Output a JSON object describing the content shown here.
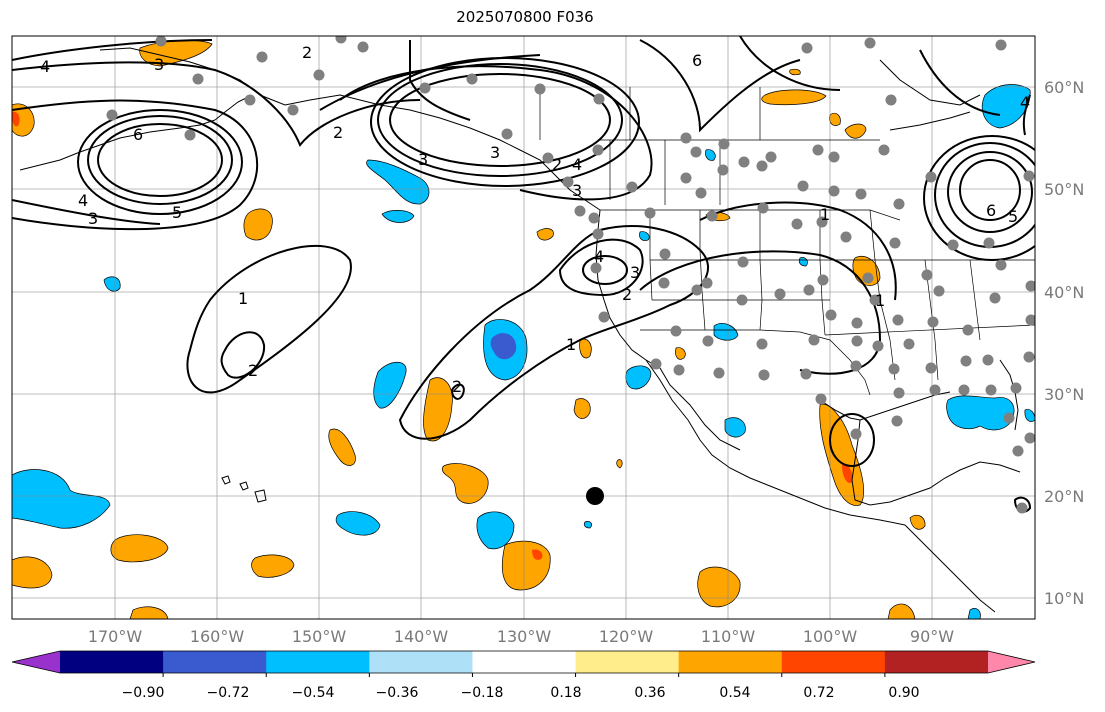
{
  "title": "2025070800 F036",
  "lat_labels": [
    "60°N",
    "50°N",
    "40°N",
    "30°N",
    "20°N",
    "10°N"
  ],
  "lon_labels": [
    "170°W",
    "160°W",
    "150°W",
    "140°W",
    "130°W",
    "120°W",
    "110°W",
    "100°W",
    "90°W"
  ],
  "colorbar": {
    "ticks": [
      "−0.90",
      "−0.72",
      "−0.54",
      "−0.36",
      "−0.18",
      "0.18",
      "0.36",
      "0.54",
      "0.72",
      "0.90"
    ],
    "colors": [
      "#9932cc",
      "#000080",
      "#3a5bcf",
      "#00bfff",
      "#aee0f8",
      "#ffffff",
      "#ffec8b",
      "#ffa500",
      "#ff4500",
      "#b22222",
      "#ff88aa"
    ]
  },
  "contour_labels": [
    "4",
    "3",
    "2",
    "6",
    "5",
    "4",
    "3",
    "2",
    "2",
    "3",
    "4",
    "3",
    "6",
    "1",
    "2",
    "2",
    "1",
    "3",
    "4",
    "2",
    "1",
    "1",
    "6",
    "5",
    "4",
    "3"
  ],
  "icons": {
    "station-dot": "gray-circle",
    "marker": "black-circle"
  }
}
